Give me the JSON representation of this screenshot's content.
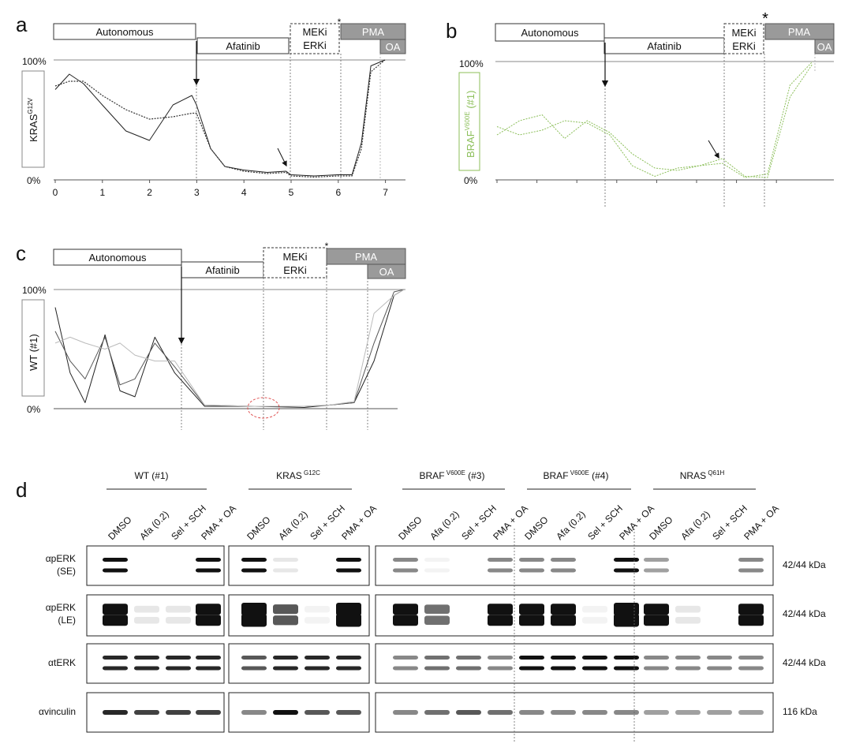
{
  "panels": {
    "a": "a",
    "b": "b",
    "c": "c",
    "d": "d"
  },
  "timeline": {
    "autonomous": "Autonomous",
    "afatinib": "Afatinib",
    "meki": "MEKi",
    "erki": "ERKi",
    "pma": "PMA",
    "oa": "OA",
    "star": "*"
  },
  "axes": {
    "top_pct": "100%",
    "bottom_pct": "0%",
    "x_ticks": [
      "0",
      "1",
      "2",
      "3",
      "4",
      "5",
      "6",
      "7"
    ]
  },
  "ylabels": {
    "a_main": "KRAS",
    "a_sup": "G12V",
    "b_main": "BRAF",
    "b_sup": "V600E",
    "b_suffix": " (#1)",
    "c_main": "WT (#1)"
  },
  "colors": {
    "grey_bar": "#9a9a9a",
    "braf_green": "#8cbf5a",
    "circle_red": "#e05555"
  },
  "chart_data": [
    {
      "type": "line",
      "panel": "a",
      "ylabel": "KRAS G12V",
      "ylim": [
        0,
        100
      ],
      "xlim": [
        0,
        7.4
      ],
      "series": [
        {
          "x": [
            0,
            0.3,
            0.6,
            1,
            1.5,
            2,
            2.5,
            2.9,
            3,
            3.3,
            3.6,
            4,
            4.5,
            4.9,
            5,
            5.5,
            6,
            6.3,
            6.5,
            6.7,
            7
          ],
          "values": [
            75,
            88,
            80,
            62,
            40,
            32,
            62,
            70,
            62,
            25,
            10,
            7,
            5,
            6,
            3,
            2,
            3,
            3,
            30,
            95,
            100
          ]
        },
        {
          "x": [
            0,
            0.3,
            0.6,
            1,
            1.5,
            2,
            2.5,
            2.9,
            3,
            3.3,
            3.6,
            4,
            4.5,
            4.9,
            5,
            5.5,
            6,
            6.3,
            6.5,
            6.7,
            7
          ],
          "values": [
            78,
            82,
            82,
            70,
            58,
            50,
            52,
            55,
            55,
            25,
            10,
            6,
            4,
            5,
            2,
            1,
            2,
            2,
            25,
            90,
            100
          ]
        }
      ]
    },
    {
      "type": "line",
      "panel": "b",
      "ylabel": "BRAF V600E (#1)",
      "ylim": [
        0,
        100
      ],
      "series": [
        {
          "x": [
            0,
            0.5,
            1,
            1.5,
            2,
            2.5,
            3,
            3.5,
            4,
            4.5,
            5,
            5.5,
            6,
            6.5,
            7
          ],
          "values": [
            38,
            50,
            55,
            35,
            50,
            40,
            22,
            10,
            8,
            12,
            14,
            2,
            5,
            80,
            100
          ]
        },
        {
          "x": [
            0,
            0.5,
            1,
            1.5,
            2,
            2.5,
            3,
            3.5,
            4,
            4.5,
            5,
            5.5,
            6,
            6.5,
            7
          ],
          "values": [
            45,
            38,
            42,
            50,
            48,
            38,
            12,
            3,
            10,
            12,
            18,
            3,
            2,
            70,
            98
          ]
        }
      ]
    },
    {
      "type": "line",
      "panel": "c",
      "ylabel": "WT (#1)",
      "ylim": [
        0,
        100
      ],
      "series": [
        {
          "x": [
            0,
            0.3,
            0.6,
            1,
            1.3,
            1.6,
            2,
            2.4,
            3,
            4,
            5,
            5.5,
            6,
            6.4,
            6.8,
            7
          ],
          "values": [
            85,
            30,
            5,
            62,
            15,
            10,
            60,
            30,
            2,
            2,
            1,
            3,
            5,
            40,
            95,
            100
          ]
        },
        {
          "x": [
            0,
            0.3,
            0.6,
            1,
            1.3,
            1.6,
            2,
            2.4,
            3,
            4,
            5,
            5.5,
            6,
            6.4,
            6.8,
            7
          ],
          "values": [
            65,
            40,
            25,
            60,
            20,
            25,
            55,
            35,
            3,
            2,
            2,
            3,
            5,
            55,
            98,
            100
          ]
        },
        {
          "x": [
            0,
            0.3,
            0.6,
            1,
            1.3,
            1.6,
            2,
            2.4,
            3,
            4,
            5,
            5.5,
            6,
            6.4,
            6.8,
            7
          ],
          "values": [
            55,
            60,
            55,
            50,
            55,
            45,
            40,
            40,
            3,
            2,
            2,
            3,
            6,
            80,
            95,
            100
          ]
        }
      ]
    }
  ],
  "blot": {
    "groups": [
      {
        "main": "WT (#1)",
        "sup": ""
      },
      {
        "main": "KRAS",
        "sup": "G12C"
      },
      {
        "main": "BRAF",
        "sup": "V600E",
        "suffix": " (#3)"
      },
      {
        "main": "BRAF",
        "sup": "V600E",
        "suffix": " (#4)"
      },
      {
        "main": "NRAS",
        "sup": "Q61H"
      }
    ],
    "lanes": [
      "DMSO",
      "Afa (0.2)",
      "Sel + SCH",
      "PMA + OA"
    ],
    "rows": [
      {
        "label1": "αpERK",
        "label2": "(SE)",
        "kda": "42/44 kDa"
      },
      {
        "label1": "αpERK",
        "label2": "(LE)",
        "kda": "42/44 kDa"
      },
      {
        "label1": "αtERK",
        "label2": "",
        "kda": "42/44 kDa"
      },
      {
        "label1": "αvinculin",
        "label2": "",
        "kda": "116 kDa"
      }
    ]
  }
}
